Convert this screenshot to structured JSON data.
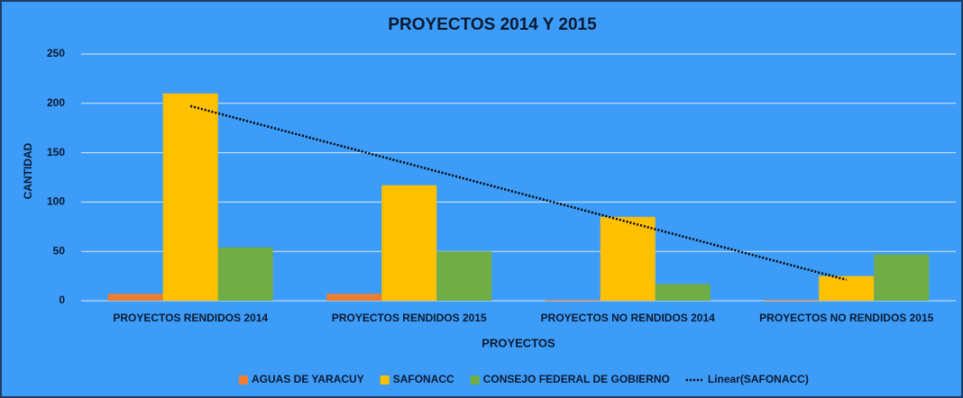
{
  "chart_data": {
    "type": "bar",
    "title": "PROYECTOS 2014 Y 2015",
    "x_label": "PROYECTOS",
    "y_label": "CANTIDAD",
    "categories": [
      "PROYECTOS RENDIDOS 2014",
      "PROYECTOS RENDIDOS 2015",
      "PROYECTOS NO RENDIDOS 2014",
      "PROYECTOS NO RENDIDOS 2015"
    ],
    "series": [
      {
        "name": "AGUAS DE YARACUY",
        "color": "#ed7d31",
        "values": [
          7,
          7,
          1,
          1
        ]
      },
      {
        "name": "SAFONACC",
        "color": "#ffc000",
        "values": [
          210,
          117,
          85,
          25
        ]
      },
      {
        "name": "CONSEJO FEDERAL DE GOBIERNO",
        "color": "#70ad47",
        "values": [
          54,
          50,
          17,
          47
        ]
      }
    ],
    "trendline": {
      "name": "Linear(SAFONACC)",
      "series": 1,
      "color": "#000000"
    },
    "ylim": [
      0,
      250
    ],
    "yticks": [
      0,
      50,
      100,
      150,
      200,
      250
    ],
    "grid": true,
    "legend": "bottom"
  }
}
